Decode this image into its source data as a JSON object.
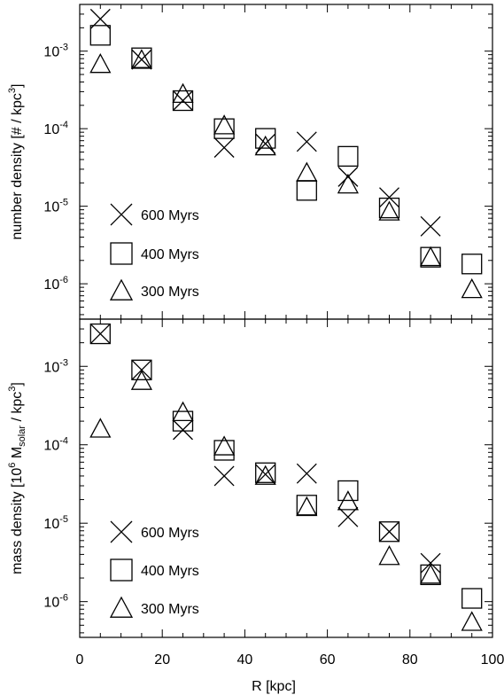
{
  "chart_data": [
    {
      "type": "scatter",
      "panel": "top",
      "xlabel": "",
      "ylabel": "number density [# / kpc³]",
      "ylabel_parts": [
        "number density [# / kpc",
        "3",
        "]"
      ],
      "xlim": [
        0,
        100
      ],
      "ylim": [
        3.5e-07,
        0.004
      ],
      "yscale": "log",
      "x_ticks": [
        0,
        20,
        40,
        60,
        80,
        100
      ],
      "x_tick_labels_shown": false,
      "y_ticks": [
        {
          "value": 0.001,
          "base": "10",
          "exp": "-3"
        },
        {
          "value": 0.0001,
          "base": "10",
          "exp": "-4"
        },
        {
          "value": 1e-05,
          "base": "10",
          "exp": "-5"
        },
        {
          "value": 1e-06,
          "base": "10",
          "exp": "-6"
        }
      ],
      "legend_position": "bottom-left",
      "series": [
        {
          "name": "600 Myrs",
          "marker": "x",
          "x": [
            5,
            15,
            25,
            35,
            45,
            55,
            65,
            75,
            85
          ],
          "y": [
            0.0026,
            0.00078,
            0.00023,
            5.7e-05,
            6.4e-05,
            6.8e-05,
            2.4e-05,
            1.3e-05,
            5.5e-06
          ]
        },
        {
          "name": "400 Myrs",
          "marker": "square",
          "x": [
            5,
            15,
            25,
            35,
            45,
            55,
            65,
            75,
            85,
            95
          ],
          "y": [
            0.0016,
            0.00082,
            0.00023,
            0.0001,
            7.5e-05,
            1.6e-05,
            4.4e-05,
            9.5e-06,
            2.2e-06,
            1.8e-06
          ]
        },
        {
          "name": "300 Myrs",
          "marker": "triangle",
          "x": [
            5,
            15,
            25,
            35,
            45,
            55,
            65,
            75,
            85,
            95
          ],
          "y": [
            0.00068,
            0.00077,
            0.00028,
            0.00011,
            5.9e-05,
            2.7e-05,
            1.9e-05,
            8.5e-06,
            2.2e-06,
            8.5e-07
          ]
        }
      ]
    },
    {
      "type": "scatter",
      "panel": "bottom",
      "xlabel": "R [kpc]",
      "ylabel": "mass density [10⁶ M_solar / kpc³]",
      "ylabel_parts": [
        "mass density [10",
        "6",
        " M",
        "solar",
        " / kpc",
        "3",
        "]"
      ],
      "xlim": [
        0,
        100
      ],
      "ylim": [
        3.5e-07,
        0.004
      ],
      "yscale": "log",
      "x_ticks": [
        0,
        20,
        40,
        60,
        80,
        100
      ],
      "x_tick_labels": [
        "0",
        "20",
        "40",
        "60",
        "80",
        "100"
      ],
      "y_ticks": [
        {
          "value": 0.001,
          "base": "10",
          "exp": "-3"
        },
        {
          "value": 0.0001,
          "base": "10",
          "exp": "-4"
        },
        {
          "value": 1e-05,
          "base": "10",
          "exp": "-5"
        },
        {
          "value": 1e-06,
          "base": "10",
          "exp": "-6"
        }
      ],
      "legend_position": "bottom-left",
      "series": [
        {
          "name": "600 Myrs",
          "marker": "x",
          "x": [
            5,
            15,
            25,
            35,
            45,
            55,
            65,
            75,
            85
          ],
          "y": [
            0.0026,
            0.0009,
            0.000155,
            4e-05,
            4.2e-05,
            4.3e-05,
            1.2e-05,
            7.8e-06,
            3.1e-06
          ]
        },
        {
          "name": "400 Myrs",
          "marker": "square",
          "x": [
            5,
            15,
            25,
            35,
            45,
            55,
            65,
            75,
            85,
            95
          ],
          "y": [
            0.0026,
            0.0009,
            0.0002,
            8.5e-05,
            4.4e-05,
            1.7e-05,
            2.6e-05,
            7.8e-06,
            2.2e-06,
            1.1e-06
          ]
        },
        {
          "name": "300 Myrs",
          "marker": "triangle",
          "x": [
            5,
            15,
            25,
            35,
            45,
            55,
            65,
            75,
            85,
            95
          ],
          "y": [
            0.00016,
            0.00065,
            0.00026,
            9.5e-05,
            4e-05,
            1.6e-05,
            1.9e-05,
            3.8e-06,
            2.2e-06,
            5.5e-07
          ]
        }
      ]
    }
  ]
}
